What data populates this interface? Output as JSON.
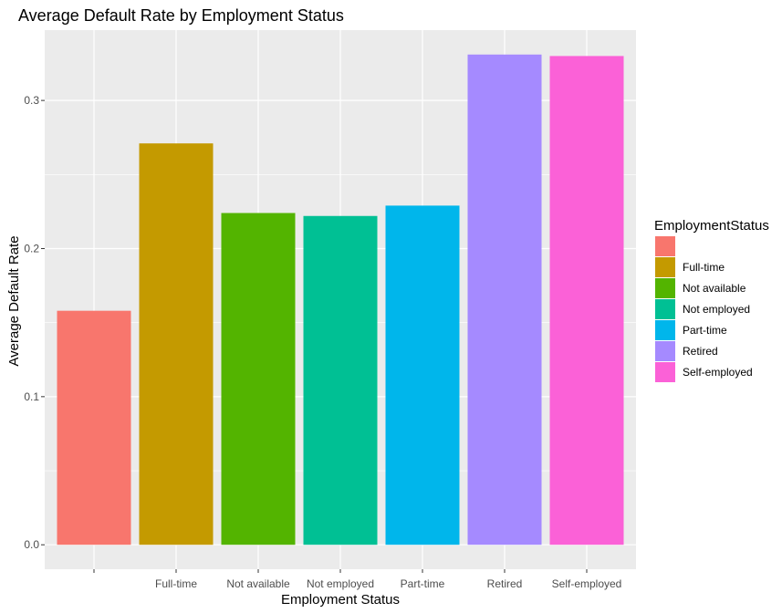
{
  "chart_data": {
    "type": "bar",
    "title": "Average Default Rate by Employment Status",
    "xlabel": "Employment Status",
    "ylabel": "Average Default Rate",
    "categories": [
      "",
      "Full-time",
      "Not available",
      "Not employed",
      "Part-time",
      "Retired",
      "Self-employed"
    ],
    "values": [
      0.158,
      0.271,
      0.224,
      0.222,
      0.229,
      0.331,
      0.33
    ],
    "colors": [
      "#F8766D",
      "#C49A00",
      "#53B400",
      "#00C094",
      "#00B6EB",
      "#A58AFF",
      "#FB61D7"
    ],
    "yticks": [
      0.0,
      0.1,
      0.2,
      0.3
    ],
    "ytick_labels": [
      "0.0",
      "0.1",
      "0.2",
      "0.3"
    ],
    "ylim": [
      -0.0165,
      0.3475
    ],
    "grid": true,
    "panel_background": "#EBEBEB",
    "legend": {
      "title": "EmploymentStatus",
      "position": "right",
      "entries": [
        "",
        "Full-time",
        "Not available",
        "Not employed",
        "Part-time",
        "Retired",
        "Self-employed"
      ]
    }
  }
}
